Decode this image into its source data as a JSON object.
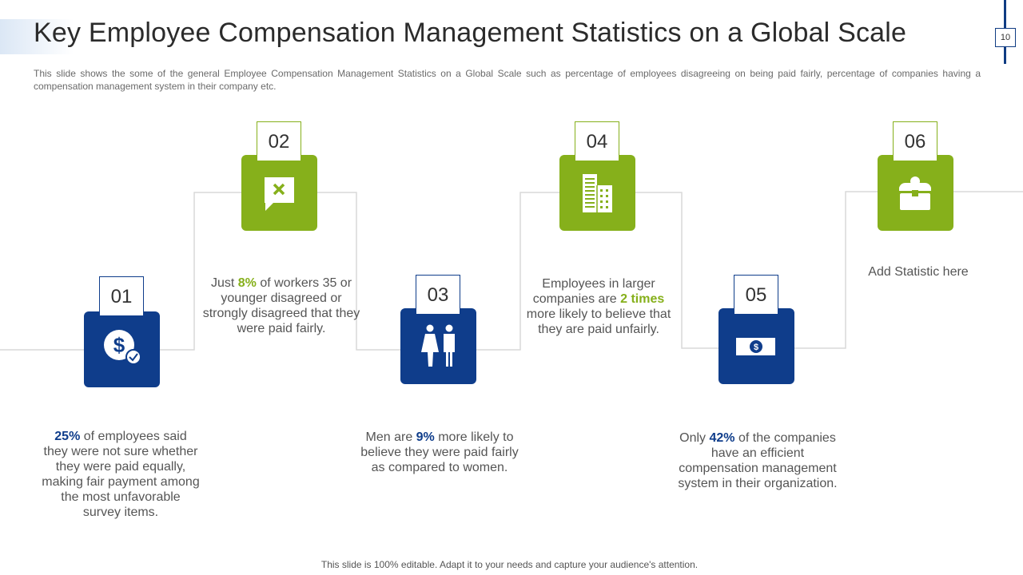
{
  "header": {
    "title": "Key Employee Compensation Management Statistics on a Global Scale",
    "page_number": "10",
    "description": "This slide shows the some of the general Employee Compensation Management Statistics on a Global Scale such as percentage of employees disagreeing on being paid fairly, percentage of companies having a compensation management system in their company etc."
  },
  "colors": {
    "blue": "#0f3d8b",
    "green": "#86b01b",
    "connector": "#d9d9d9"
  },
  "steps": [
    {
      "number": "01",
      "icon": "dollar-check-icon",
      "color": "blue",
      "text_pre": "",
      "highlight": "25%",
      "text_mid": " of employees said they were not sure whether they were paid equally, making fair payment among the most unfavorable survey items.",
      "highlight2": "",
      "text_post": ""
    },
    {
      "number": "02",
      "icon": "chat-x-icon",
      "color": "green",
      "text_pre": "Just ",
      "highlight": "8%",
      "text_mid": " of workers 35 or younger disagreed or strongly disagreed that they were paid fairly.",
      "highlight2": "",
      "text_post": ""
    },
    {
      "number": "03",
      "icon": "man-woman-icon",
      "color": "blue",
      "text_pre": "Men are ",
      "highlight": "9%",
      "text_mid": " more likely to believe they were paid fairly as compared to women.",
      "highlight2": "",
      "text_post": ""
    },
    {
      "number": "04",
      "icon": "buildings-icon",
      "color": "green",
      "text_pre": "Employees in larger companies are ",
      "highlight": "2 times",
      "text_mid": " more likely to believe that they are paid unfairly.",
      "highlight2": "",
      "text_post": ""
    },
    {
      "number": "05",
      "icon": "banknote-icon",
      "color": "blue",
      "text_pre": "Only ",
      "highlight": "42%",
      "text_mid": " of the companies have an efficient compensation management system in their organization.",
      "highlight2": "",
      "text_post": ""
    },
    {
      "number": "06",
      "icon": "treasure-box-icon",
      "color": "green",
      "text_pre": "Add Statistic here",
      "highlight": "",
      "text_mid": "",
      "highlight2": "",
      "text_post": ""
    }
  ],
  "footer": {
    "text": "This slide is 100% editable. Adapt it to your needs and capture your audience's attention."
  }
}
